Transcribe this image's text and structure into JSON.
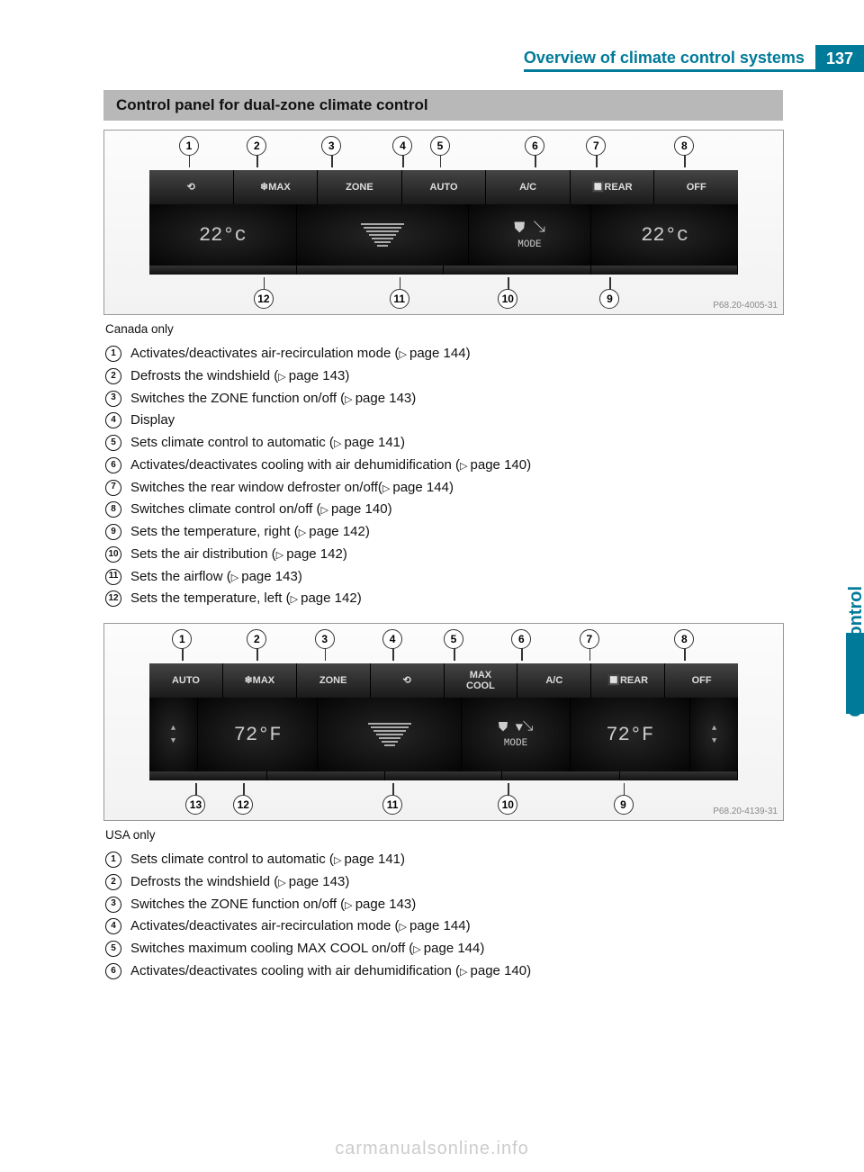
{
  "header": {
    "title": "Overview of climate control systems",
    "page_number": "137",
    "side_tab": "Climate control"
  },
  "colors": {
    "accent": "#007a99",
    "header_bar": "#b8b8b8",
    "text": "#111111",
    "muted": "#888888",
    "panel_dark": "#1a1a1a",
    "footer": "#cccccc"
  },
  "section1": {
    "heading": "Control panel for dual-zone climate control",
    "figure": {
      "top_callouts": [
        {
          "n": "1",
          "left_pct": 11
        },
        {
          "n": "2",
          "left_pct": 21
        },
        {
          "n": "3",
          "left_pct": 32
        },
        {
          "n": "4",
          "left_pct": 42.5
        },
        {
          "n": "5",
          "left_pct": 48
        },
        {
          "n": "6",
          "left_pct": 62
        },
        {
          "n": "7",
          "left_pct": 71
        },
        {
          "n": "8",
          "left_pct": 84
        }
      ],
      "bottom_callouts": [
        {
          "n": "12",
          "left_pct": 22
        },
        {
          "n": "11",
          "left_pct": 42
        },
        {
          "n": "10",
          "left_pct": 58
        },
        {
          "n": "9",
          "left_pct": 73
        }
      ],
      "buttons_top": [
        "⟲",
        "❄MAX",
        "ZONE",
        "AUTO",
        "A/C",
        "🔲REAR",
        "OFF"
      ],
      "disp_left": "22°c",
      "disp_right": "22°c",
      "mode_label": "MODE",
      "code": "P68.20-4005-31"
    },
    "caption": "Canada only",
    "legend": [
      {
        "n": "1",
        "text": "Activates/deactivates air-recirculation mode (",
        "ref": "page 144",
        "after": ")"
      },
      {
        "n": "2",
        "text": "Defrosts the windshield (",
        "ref": "page 143",
        "after": ")"
      },
      {
        "n": "3",
        "text": "Switches the ZONE function on/off (",
        "ref": "page 143",
        "after": ")"
      },
      {
        "n": "4",
        "text": "Display",
        "ref": "",
        "after": ""
      },
      {
        "n": "5",
        "text": "Sets climate control to automatic (",
        "ref": "page 141",
        "after": ")"
      },
      {
        "n": "6",
        "text": "Activates/deactivates cooling with air dehumidification (",
        "ref": "page 140",
        "after": ")"
      },
      {
        "n": "7",
        "text": "Switches the rear window defroster on/off(",
        "ref": "page 144",
        "after": ")"
      },
      {
        "n": "8",
        "text": "Switches climate control on/off (",
        "ref": "page 140",
        "after": ")"
      },
      {
        "n": "9",
        "text": "Sets the temperature, right (",
        "ref": "page 142",
        "after": ")"
      },
      {
        "n": "10",
        "text": "Sets the air distribution (",
        "ref": "page 142",
        "after": ")"
      },
      {
        "n": "11",
        "text": "Sets the airflow (",
        "ref": "page 143",
        "after": ")"
      },
      {
        "n": "12",
        "text": "Sets the temperature, left (",
        "ref": "page 142",
        "after": ")"
      }
    ]
  },
  "section2": {
    "figure": {
      "top_callouts": [
        {
          "n": "1",
          "left_pct": 10
        },
        {
          "n": "2",
          "left_pct": 21
        },
        {
          "n": "3",
          "left_pct": 31
        },
        {
          "n": "4",
          "left_pct": 41
        },
        {
          "n": "5",
          "left_pct": 50
        },
        {
          "n": "6",
          "left_pct": 60
        },
        {
          "n": "7",
          "left_pct": 70
        },
        {
          "n": "8",
          "left_pct": 84
        }
      ],
      "bottom_callouts": [
        {
          "n": "13",
          "left_pct": 12
        },
        {
          "n": "12",
          "left_pct": 19
        },
        {
          "n": "11",
          "left_pct": 41
        },
        {
          "n": "10",
          "left_pct": 58
        },
        {
          "n": "9",
          "left_pct": 75
        }
      ],
      "buttons_top": [
        "AUTO",
        "❄MAX",
        "ZONE",
        "⟲",
        "MAX\nCOOL",
        "A/C",
        "🔲REAR",
        "OFF"
      ],
      "disp_left": "72°F",
      "disp_right": "72°F",
      "mode_label": "MODE",
      "code": "P68.20-4139-31"
    },
    "caption": "USA only",
    "legend": [
      {
        "n": "1",
        "text": "Sets climate control to automatic (",
        "ref": "page 141",
        "after": ")"
      },
      {
        "n": "2",
        "text": "Defrosts the windshield (",
        "ref": "page 143",
        "after": ")"
      },
      {
        "n": "3",
        "text": "Switches the ZONE function on/off (",
        "ref": "page 143",
        "after": ")"
      },
      {
        "n": "4",
        "text": "Activates/deactivates air-recirculation mode (",
        "ref": "page 144",
        "after": ")"
      },
      {
        "n": "5",
        "text": "Switches maximum cooling MAX COOL on/off (",
        "ref": "page 144",
        "after": ")"
      },
      {
        "n": "6",
        "text": "Activates/deactivates cooling with air dehumidification (",
        "ref": "page 140",
        "after": ")"
      }
    ]
  },
  "footer": "carmanualsonline.info"
}
